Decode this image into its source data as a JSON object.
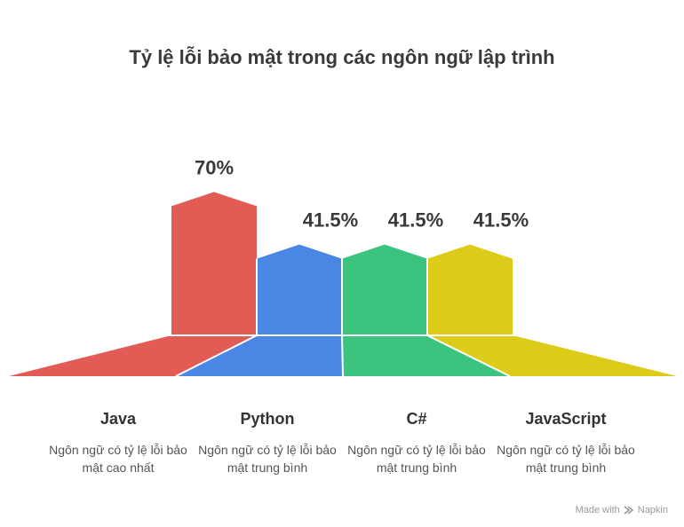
{
  "chart_data": {
    "type": "bar",
    "title": "Tỷ lệ lỗi bảo mật trong các ngôn ngữ lập trình",
    "categories": [
      "Java",
      "Python",
      "C#",
      "JavaScript"
    ],
    "values": [
      70,
      41.5,
      41.5,
      41.5
    ],
    "value_labels": [
      "70%",
      "41.5%",
      "41.5%",
      "41.5%"
    ],
    "descriptions": [
      "Ngôn ngữ có tỷ lệ lỗi bảo mật cao nhất",
      "Ngôn ngữ có tỷ lệ lỗi bảo mật trung bình",
      "Ngôn ngữ có tỷ lệ lỗi bảo mật trung bình",
      "Ngôn ngữ có tỷ lệ lỗi bảo mật trung bình"
    ],
    "colors": [
      "#e35b55",
      "#4a86e4",
      "#3cc47e",
      "#ddcb1a"
    ],
    "ylim": [
      0,
      100
    ],
    "grid": false,
    "legend": "none"
  },
  "footer": {
    "made_with": "Made with",
    "brand": "Napkin"
  }
}
